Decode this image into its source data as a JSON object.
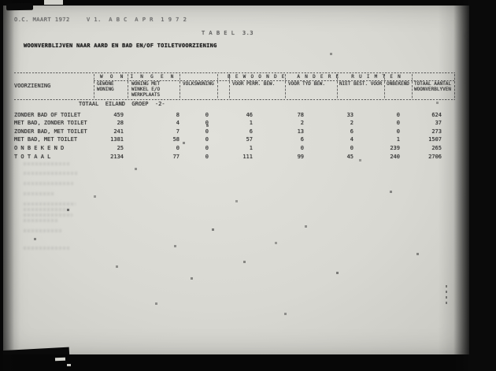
{
  "document": {
    "stamp_left": "O.C. MAART 1972",
    "stamp_right": "V 1.  A B C  A P R  1 9 7 2",
    "tabel_label": "T A B E L  3.3",
    "title": "WOONVERBLIJVEN NAAR AARD EN BAD EN/OF TOILETVOORZIENING",
    "scope_line": "TOTAAL  EILAND  GROEP  -2-"
  },
  "table": {
    "row_header": "VOORZIENING",
    "groups": [
      {
        "label": "W O N I N G E N"
      },
      {
        "label": "B E W O O N D E   A N D E R E   R U I M T E N"
      }
    ],
    "columns": [
      {
        "lines": [
          "GEWONE",
          "WONING"
        ]
      },
      {
        "lines": [
          "WONING MET",
          "WINKEL E/O",
          "WERKPLAATS"
        ]
      },
      {
        "lines": [
          "VOLKSWONING"
        ]
      },
      {
        "lines": [
          "VOOR PERM. BEW."
        ]
      },
      {
        "lines": [
          "VOOR TYD BEW."
        ]
      },
      {
        "lines": [
          "NIET BEST. VOOR"
        ]
      },
      {
        "lines": [
          "ONBEKEND"
        ]
      },
      {
        "lines": [
          "TOTAAL AANTAL",
          "WOONVERBLYVEN"
        ]
      }
    ],
    "rows": [
      {
        "label": "ZONDER BAD OF TOILET",
        "values": [
          "459",
          "8",
          "0",
          "46",
          "78",
          "33",
          "0",
          "624"
        ]
      },
      {
        "label": "MET BAD, ZONDER TOILET",
        "values": [
          "28",
          "4",
          "0",
          "1",
          "2",
          "2",
          "0",
          "37"
        ]
      },
      {
        "label": "ZONDER BAD, MET TOILET",
        "values": [
          "241",
          "7",
          "0",
          "6",
          "13",
          "6",
          "0",
          "273"
        ]
      },
      {
        "label": "MET BAD, MET TOILET",
        "values": [
          "1381",
          "58",
          "0",
          "57",
          "6",
          "4",
          "1",
          "1507"
        ]
      },
      {
        "label": "O N B E K E N D",
        "values": [
          "25",
          "0",
          "0",
          "1",
          "0",
          "0",
          "239",
          "265"
        ]
      },
      {
        "label": "T O T A A L",
        "values": [
          "2134",
          "77",
          "0",
          "111",
          "99",
          "45",
          "240",
          "2706"
        ]
      }
    ]
  }
}
